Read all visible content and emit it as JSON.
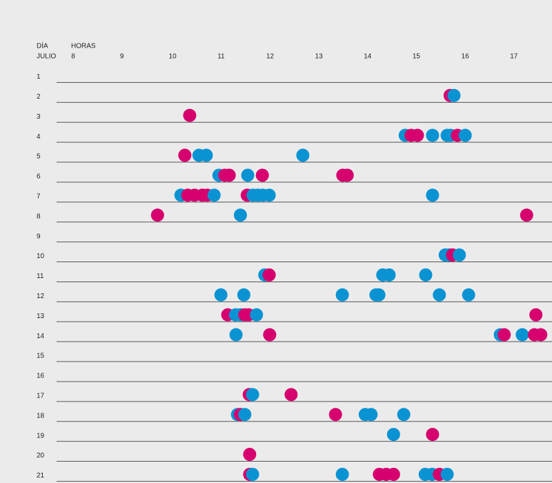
{
  "chart_data": {
    "type": "scatter",
    "x_label": "HORAS",
    "y_label": [
      "DÍA",
      "JULIO"
    ],
    "xlim": [
      7.7,
      17.86
    ],
    "xticks": [
      8,
      9,
      10,
      11,
      12,
      13,
      14,
      15,
      16,
      17
    ],
    "ylim": [
      0.5,
      21.4
    ],
    "yticks": [
      1,
      2,
      3,
      4,
      5,
      6,
      7,
      8,
      9,
      10,
      11,
      12,
      13,
      14,
      15,
      16,
      17,
      18,
      19,
      20,
      21
    ],
    "series": [
      {
        "color": "#d6006e",
        "x": [
          15.77,
          10.43,
          14.97,
          15.1,
          15.92,
          10.33,
          11.15,
          11.24,
          11.92,
          13.57,
          13.66,
          10.39,
          10.53,
          10.69,
          10.79,
          11.61,
          9.77,
          17.34,
          15.82,
          12.06,
          11.21,
          11.56,
          11.64,
          17.53,
          12.07,
          16.88,
          17.5,
          17.63,
          11.65,
          12.51,
          11.47,
          13.42,
          15.41,
          11.66,
          11.66,
          14.32,
          14.46,
          14.61,
          15.55
        ],
        "y": [
          2,
          3,
          4,
          4,
          4,
          5,
          6,
          6,
          6,
          6,
          6,
          7,
          7,
          7,
          7,
          7,
          8,
          8,
          10,
          11,
          13,
          13,
          13,
          13,
          14,
          14,
          14,
          14,
          17,
          17,
          18,
          18,
          19,
          20,
          21,
          21,
          21,
          21,
          21
        ]
      },
      {
        "color": "#0a93d3",
        "x": [
          15.85,
          14.85,
          15.41,
          15.71,
          15.78,
          16.08,
          10.62,
          10.77,
          12.75,
          11.03,
          11.62,
          10.25,
          10.93,
          11.73,
          11.83,
          11.93,
          12.06,
          15.41,
          11.47,
          15.67,
          15.75,
          15.96,
          11.97,
          14.39,
          14.52,
          15.27,
          11.07,
          11.54,
          13.56,
          14.25,
          14.31,
          15.55,
          16.15,
          11.37,
          11.47,
          11.8,
          11.38,
          16.8,
          17.25,
          11.72,
          11.41,
          11.56,
          14.03,
          14.15,
          14.82,
          14.61,
          11.72,
          13.56,
          15.26,
          15.4,
          15.71
        ],
        "y": [
          2,
          4,
          4,
          4,
          4,
          4,
          5,
          5,
          5,
          6,
          6,
          7,
          7,
          7,
          7,
          7,
          7,
          7,
          8,
          10,
          10,
          10,
          11,
          11,
          11,
          11,
          12,
          12,
          12,
          12,
          12,
          12,
          12,
          13,
          13,
          13,
          14,
          14,
          14,
          17,
          18,
          18,
          18,
          18,
          18,
          19,
          21,
          21,
          21,
          21,
          21
        ]
      }
    ]
  }
}
